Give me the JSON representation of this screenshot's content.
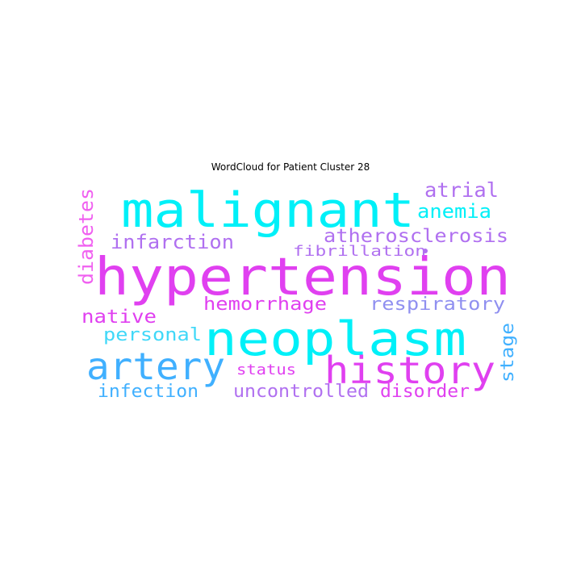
{
  "title": "WordCloud for Patient Cluster 28",
  "palette": {
    "cyan": "#00f0f8",
    "magenta": "#e040f0",
    "violet": "#b070f0",
    "blue": "#40b0ff",
    "pink": "#f060f0",
    "lavender": "#9090f0"
  },
  "words": {
    "hypertension": "hypertension",
    "malignant": "malignant",
    "neoplasm": "neoplasm",
    "history": "history",
    "artery": "artery",
    "atrial": "atrial",
    "anemia": "anemia",
    "atherosclerosis": "atherosclerosis",
    "fibrillation": "fibrillation",
    "infarction": "infarction",
    "diabetes": "diabetes",
    "hemorrhage": "hemorrhage",
    "respiratory": "respiratory",
    "native": "native",
    "personal": "personal",
    "stage": "stage",
    "status": "status",
    "infection": "infection",
    "uncontrolled": "uncontrolled",
    "disorder": "disorder"
  }
}
